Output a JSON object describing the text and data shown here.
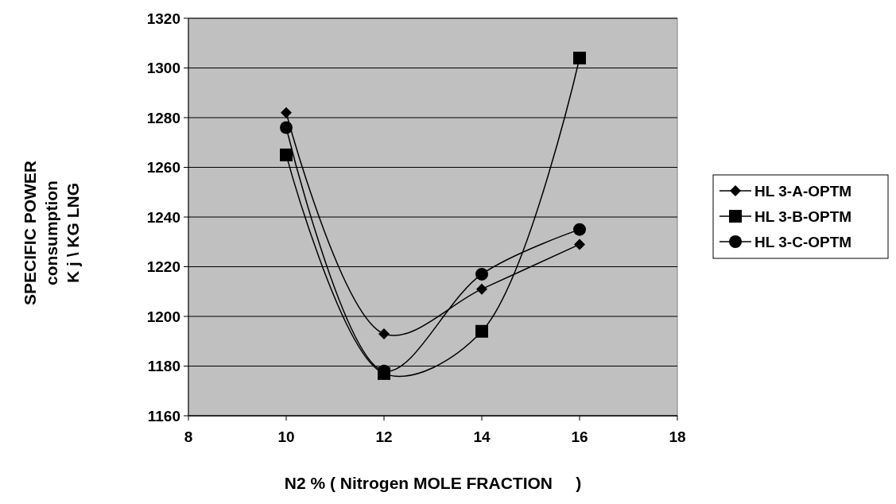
{
  "chart_data": {
    "type": "line",
    "xlabel": "N2 % ( Nitrogen MOLE FRACTION     )",
    "ylabel": "SPECIFIC POWER\nconsumption\nK j \\ KG LNG",
    "x": [
      10,
      12,
      14,
      16
    ],
    "xlim": [
      8,
      18
    ],
    "xticks": [
      8,
      10,
      12,
      14,
      16,
      18
    ],
    "ylim": [
      1160,
      1320
    ],
    "yticks": [
      1160,
      1180,
      1200,
      1220,
      1240,
      1260,
      1280,
      1300,
      1320
    ],
    "grid": "y",
    "legend": "right",
    "line_style": "solid",
    "series": [
      {
        "name": "HL 3-A-OPTM",
        "color": "#000000",
        "marker": "diamond",
        "values": [
          1282,
          1193,
          1211,
          1229
        ]
      },
      {
        "name": "HL 3-B-OPTM",
        "color": "#000000",
        "marker": "square",
        "values": [
          1265,
          1177,
          1194,
          1304
        ]
      },
      {
        "name": "HL 3-C-OPTM",
        "color": "#000000",
        "marker": "circle",
        "values": [
          1276,
          1178,
          1217,
          1235
        ]
      }
    ]
  }
}
